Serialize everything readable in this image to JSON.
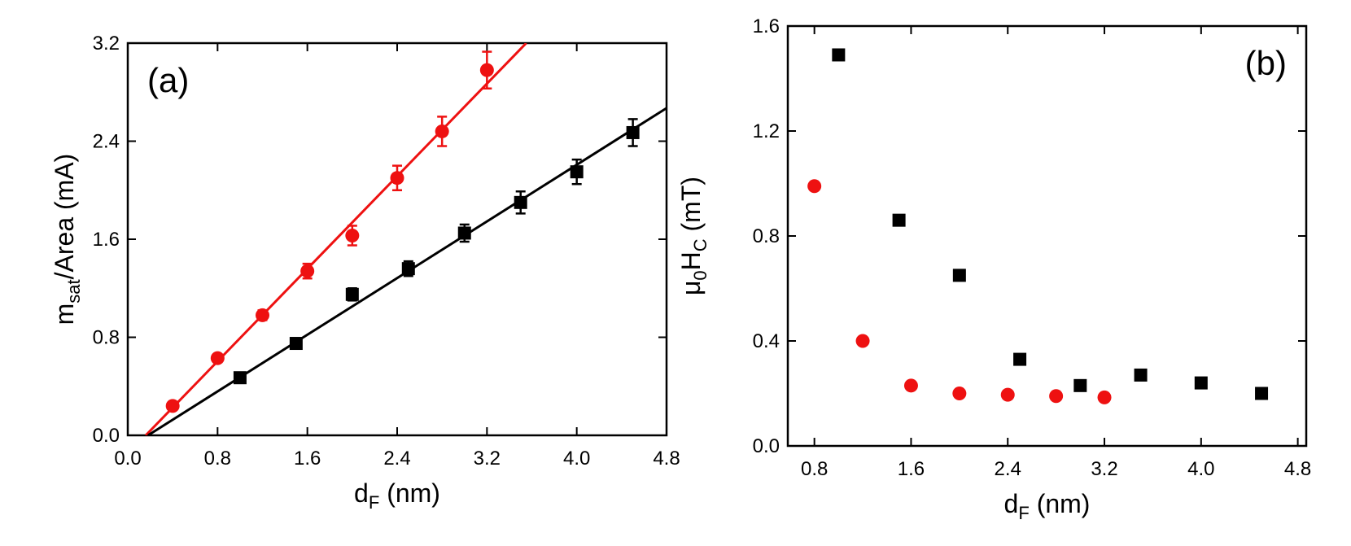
{
  "chart_data": [
    {
      "type": "scatter",
      "annotation": "(a)",
      "x_label": [
        "d",
        "F",
        " (nm)"
      ],
      "y_label": [
        "m",
        "sat",
        "/Area (mA)"
      ],
      "xlim": [
        0,
        4.8
      ],
      "ylim": [
        0,
        3.2
      ],
      "xticks": [
        {
          "value": 0,
          "label": "0.0"
        },
        0.8,
        1.6,
        2.4,
        3.2,
        {
          "value": 4,
          "label": "4.0"
        },
        4.8
      ],
      "yticks": [
        {
          "value": 0,
          "label": "0.0"
        },
        0.8,
        1.6,
        2.4,
        3.2
      ],
      "series": [
        {
          "marker": "circle",
          "color": "#ee1111",
          "x": [
            0.4,
            0.8,
            1.2,
            1.6,
            2.0,
            2.4,
            2.8,
            3.2
          ],
          "values": [
            0.24,
            0.63,
            0.98,
            1.34,
            1.63,
            2.1,
            2.48,
            2.98
          ],
          "errors": [
            0.03,
            0.03,
            0.04,
            0.06,
            0.08,
            0.1,
            0.12,
            0.15
          ],
          "fit": {
            "x": [
              0.16,
              3.55
            ],
            "values": [
              0,
              3.2
            ]
          }
        },
        {
          "marker": "square",
          "color": "#000000",
          "x": [
            1.0,
            1.5,
            2.0,
            2.5,
            3.0,
            3.5,
            4.0,
            4.5
          ],
          "values": [
            0.47,
            0.75,
            1.15,
            1.36,
            1.65,
            1.9,
            2.15,
            2.47
          ],
          "errors": [
            0.03,
            0.03,
            0.05,
            0.06,
            0.07,
            0.09,
            0.1,
            0.11
          ],
          "fit": {
            "x": [
              0.18,
              4.8
            ],
            "values": [
              0,
              2.67
            ]
          }
        }
      ]
    },
    {
      "type": "scatter",
      "annotation": "(b)",
      "x_label": [
        "d",
        "F",
        " (nm)"
      ],
      "y_label": [
        "μ",
        "0",
        "H",
        "C",
        " (mT)"
      ],
      "xlim": [
        0.58,
        4.87
      ],
      "ylim": [
        0,
        1.6
      ],
      "xticks": [
        0.8,
        1.6,
        2.4,
        3.2,
        {
          "value": 4,
          "label": "4.0"
        },
        4.8
      ],
      "yticks": [
        {
          "value": 0,
          "label": "0.0"
        },
        0.4,
        0.8,
        1.2,
        1.6
      ],
      "series": [
        {
          "marker": "square",
          "color": "#000000",
          "x": [
            1.0,
            1.5,
            2.0,
            2.5,
            3.0,
            3.5,
            4.0,
            4.5
          ],
          "values": [
            1.49,
            0.86,
            0.65,
            0.33,
            0.23,
            0.27,
            0.24,
            0.2
          ]
        },
        {
          "marker": "circle",
          "color": "#ee1111",
          "x": [
            0.8,
            1.2,
            1.6,
            2.0,
            2.4,
            2.8,
            3.2
          ],
          "values": [
            0.99,
            0.4,
            0.23,
            0.2,
            0.195,
            0.19,
            0.185
          ]
        }
      ]
    }
  ]
}
